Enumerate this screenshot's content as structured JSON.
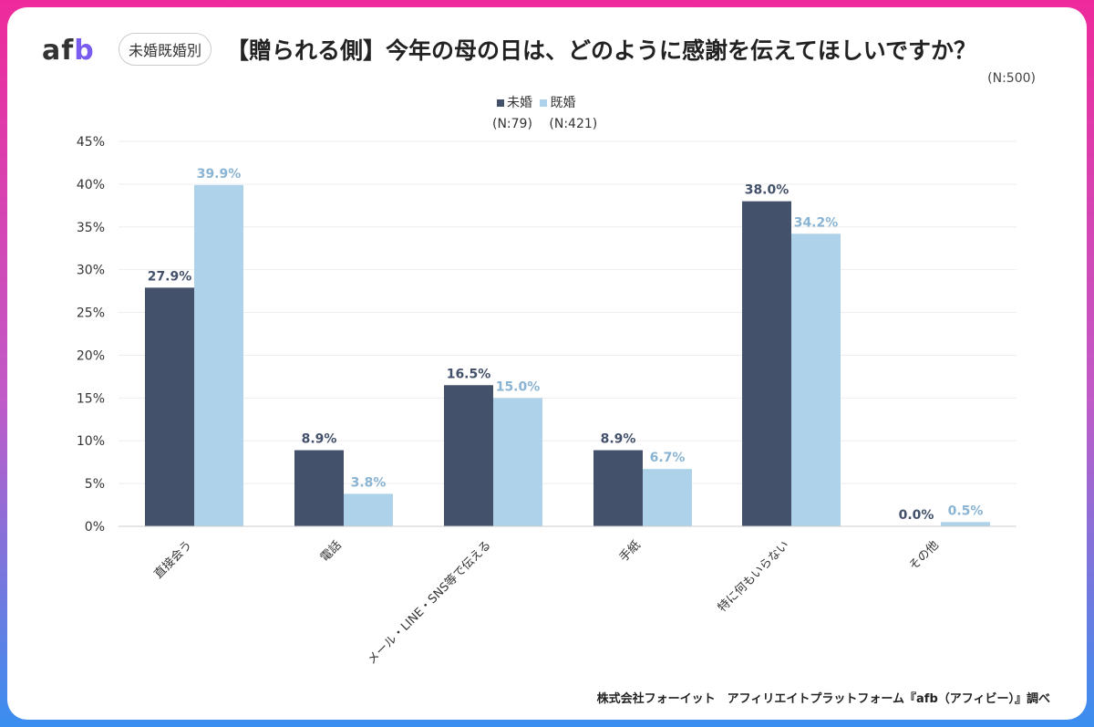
{
  "header": {
    "logo": "afb",
    "badge": "未婚既婚別",
    "title": "【贈られる側】今年の母の日は、どのように感謝を伝えてほしいですか？",
    "n_total": "(N:500)"
  },
  "footer": "株式会社フォーイット　アフィリエイトプラットフォーム『afb（アフィビー）』調べ",
  "chart_data": {
    "type": "bar",
    "title": "【贈られる側】今年の母の日は、どのように感謝を伝えてほしいですか？",
    "categories": [
      "直接会う",
      "電話",
      "メール・LINE・SNS等で伝える",
      "手紙",
      "特に何もいらない",
      "その他"
    ],
    "series": [
      {
        "name": "未婚",
        "n": "(N:79)",
        "color": "#44516a",
        "values": [
          27.9,
          8.9,
          16.5,
          8.9,
          38.0,
          0.0
        ]
      },
      {
        "name": "既婚",
        "n": "(N:421)",
        "color": "#aed2ea",
        "values": [
          39.9,
          3.8,
          15.0,
          6.7,
          34.2,
          0.5
        ]
      }
    ],
    "ylim": [
      0,
      45
    ],
    "yticks": [
      "0%",
      "5%",
      "10%",
      "15%",
      "20%",
      "25%",
      "30%",
      "35%",
      "40%",
      "45%"
    ],
    "grid": true,
    "legend": "top"
  }
}
